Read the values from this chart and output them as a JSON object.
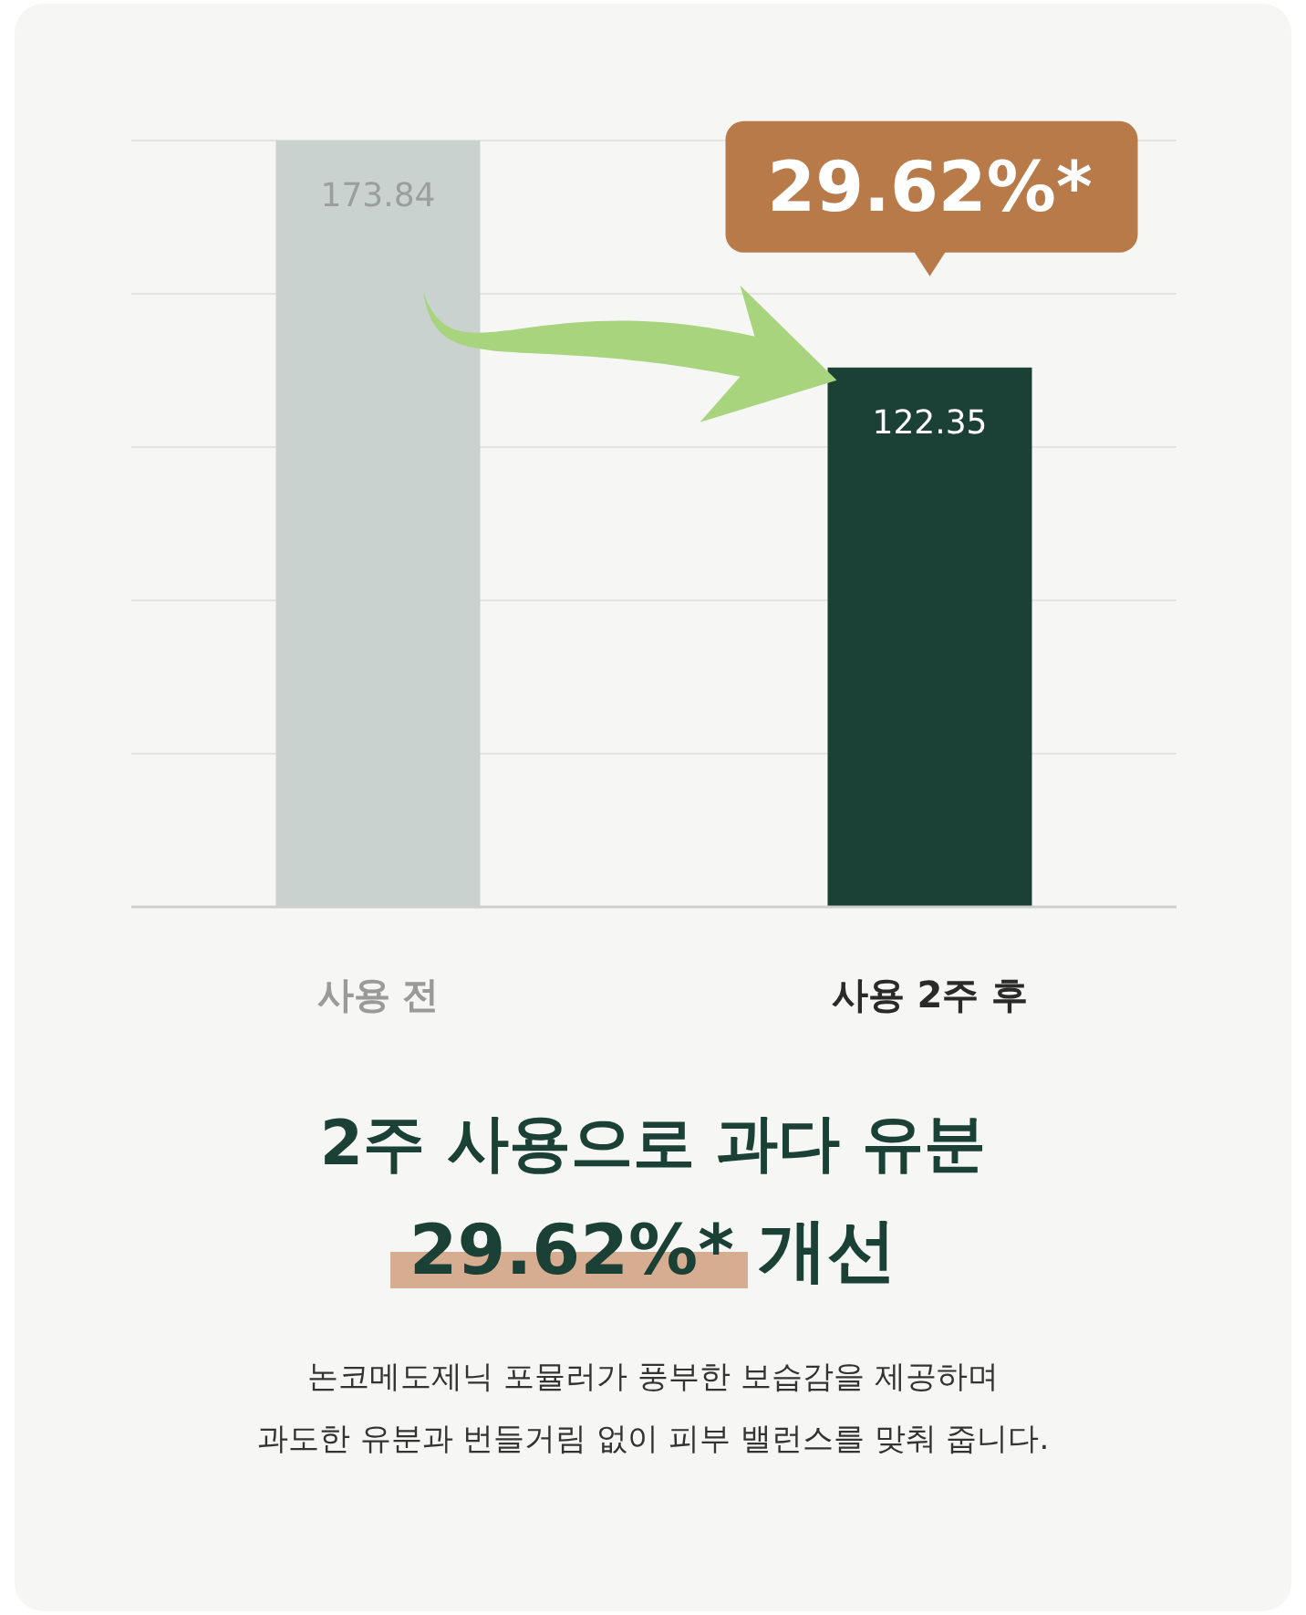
{
  "chart_data": {
    "type": "bar",
    "categories": [
      "사용 전",
      "사용 2주 후"
    ],
    "values": [
      173.84,
      122.35
    ],
    "colors": [
      "#c9d2cf",
      "#1b4035"
    ],
    "data_labels": true,
    "grid": "y",
    "title": "2주 사용으로 과다 유분",
    "subtitle": "29.62%* 개선",
    "annotations": [
      "29.62%*",
      "논코메도제닉 포뮬러가 풍부한 보습감을 제공하며",
      "과도한 유분과 번들거림 없이 피부 밸런스를 맞춰 줍니다."
    ]
  }
}
